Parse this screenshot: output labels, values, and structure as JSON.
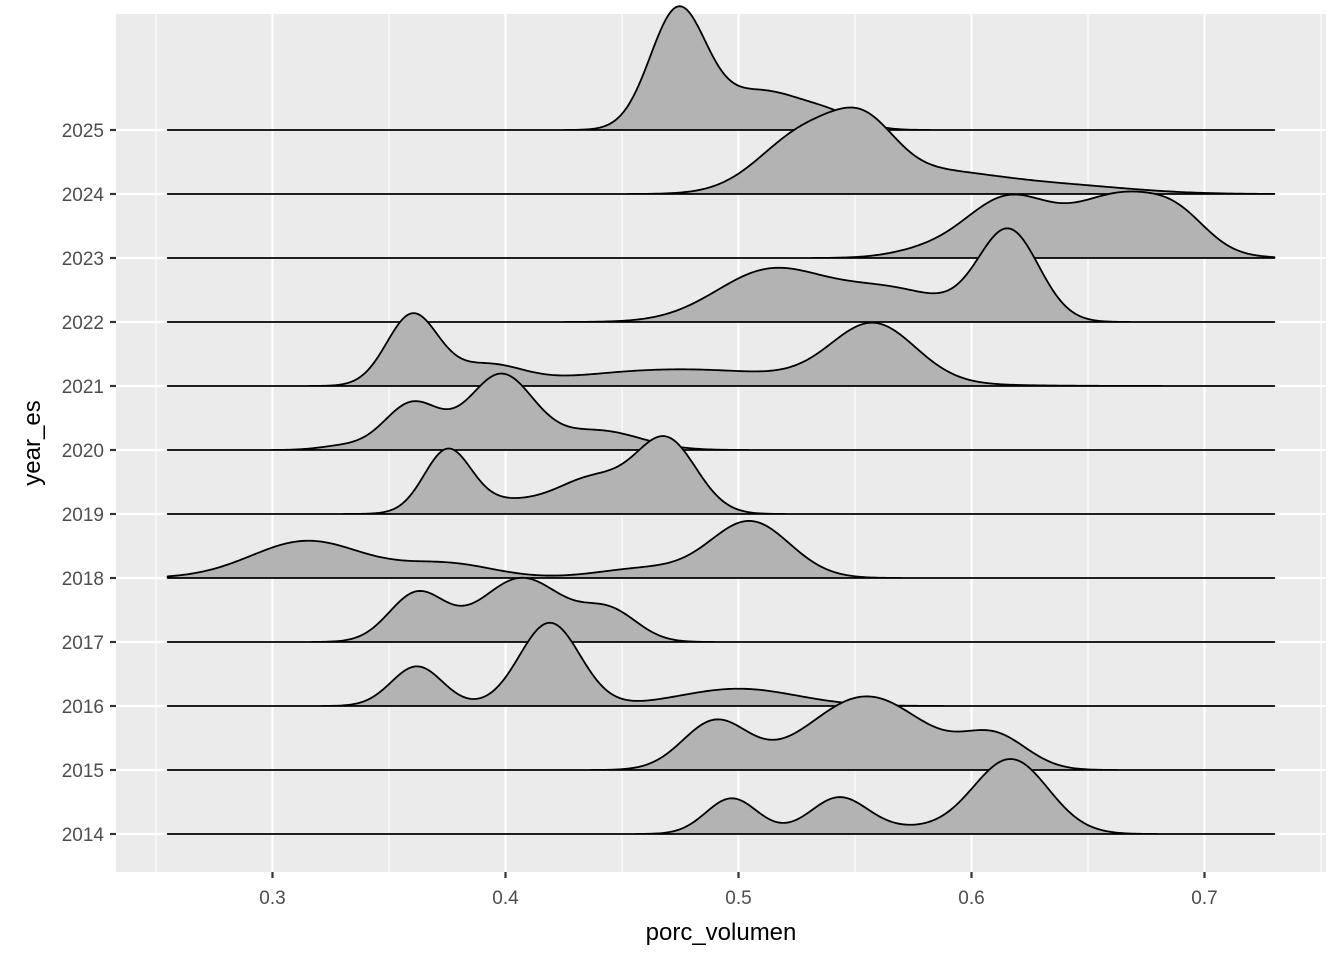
{
  "chart_data": {
    "type": "ridgeline",
    "xlabel": "porc_volumen",
    "ylabel": "year_es",
    "xlim": [
      0.23,
      0.75
    ],
    "x_ticks": [
      0.3,
      0.4,
      0.5,
      0.6,
      0.7
    ],
    "x_minor_ticks": [
      0.25,
      0.35,
      0.45,
      0.55,
      0.65,
      0.75
    ],
    "x_tick_labels": [
      "0.3",
      "0.4",
      "0.5",
      "0.6",
      "0.7"
    ],
    "density_range": [
      0.255,
      0.73
    ],
    "categories": [
      "2014",
      "2015",
      "2016",
      "2017",
      "2018",
      "2019",
      "2020",
      "2021",
      "2022",
      "2023",
      "2024",
      "2025"
    ],
    "ridge_scale": "density height relative to row spacing",
    "grid": true,
    "legend": "none",
    "colors": {
      "panel": "#ebebeb",
      "fill": "#b3b3b3",
      "outline": "#000000",
      "grid": "#ffffff"
    },
    "series": [
      {
        "category": "2014",
        "components": [
          [
            0.497,
            0.011,
            0.55
          ],
          [
            0.543,
            0.012,
            0.5
          ],
          [
            0.617,
            0.016,
            1.15
          ],
          [
            0.565,
            0.03,
            0.1
          ]
        ]
      },
      {
        "category": "2015",
        "components": [
          [
            0.49,
            0.014,
            0.75
          ],
          [
            0.555,
            0.025,
            1.15
          ],
          [
            0.61,
            0.014,
            0.5
          ]
        ]
      },
      {
        "category": "2016",
        "components": [
          [
            0.362,
            0.011,
            0.62
          ],
          [
            0.419,
            0.013,
            1.3
          ],
          [
            0.5,
            0.025,
            0.27
          ]
        ]
      },
      {
        "category": "2017",
        "components": [
          [
            0.362,
            0.012,
            0.75
          ],
          [
            0.407,
            0.018,
            1.0
          ],
          [
            0.445,
            0.012,
            0.45
          ]
        ]
      },
      {
        "category": "2018",
        "components": [
          [
            0.315,
            0.024,
            0.58
          ],
          [
            0.375,
            0.02,
            0.22
          ],
          [
            0.505,
            0.017,
            0.88
          ],
          [
            0.46,
            0.02,
            0.15
          ]
        ]
      },
      {
        "category": "2019",
        "components": [
          [
            0.375,
            0.01,
            0.93
          ],
          [
            0.4,
            0.02,
            0.2
          ],
          [
            0.438,
            0.015,
            0.52
          ],
          [
            0.469,
            0.013,
            1.15
          ]
        ]
      },
      {
        "category": "2020",
        "components": [
          [
            0.36,
            0.012,
            0.73
          ],
          [
            0.398,
            0.014,
            1.17
          ],
          [
            0.44,
            0.018,
            0.3
          ],
          [
            0.33,
            0.01,
            0.06
          ]
        ]
      },
      {
        "category": "2021",
        "components": [
          [
            0.36,
            0.011,
            1.1
          ],
          [
            0.392,
            0.015,
            0.3
          ],
          [
            0.465,
            0.04,
            0.2
          ],
          [
            0.558,
            0.018,
            0.9
          ],
          [
            0.52,
            0.05,
            0.1
          ]
        ]
      },
      {
        "category": "2022",
        "components": [
          [
            0.513,
            0.023,
            0.78
          ],
          [
            0.565,
            0.025,
            0.5
          ],
          [
            0.616,
            0.013,
            1.4
          ]
        ]
      },
      {
        "category": "2023",
        "components": [
          [
            0.615,
            0.018,
            0.9
          ],
          [
            0.665,
            0.022,
            0.98
          ],
          [
            0.69,
            0.012,
            0.3
          ],
          [
            0.58,
            0.015,
            0.1
          ]
        ]
      },
      {
        "category": "2024",
        "components": [
          [
            0.53,
            0.02,
            0.95
          ],
          [
            0.555,
            0.013,
            0.6
          ],
          [
            0.58,
            0.03,
            0.35
          ],
          [
            0.64,
            0.03,
            0.12
          ]
        ]
      },
      {
        "category": "2025",
        "components": [
          [
            0.474,
            0.012,
            1.85
          ],
          [
            0.51,
            0.018,
            0.6
          ],
          [
            0.54,
            0.012,
            0.18
          ]
        ]
      }
    ]
  }
}
